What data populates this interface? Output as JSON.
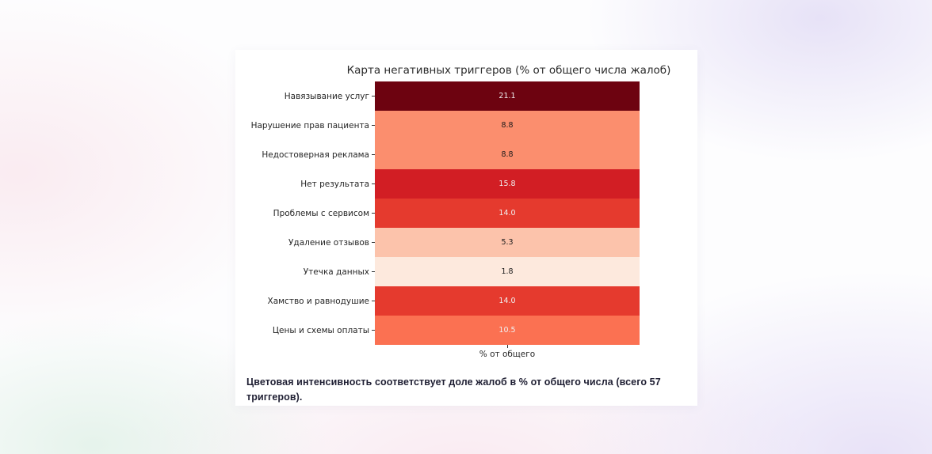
{
  "chart_data": {
    "type": "heatmap",
    "title": "Карта негативных триггеров (% от общего числа жалоб)",
    "xlabel": "% от общего",
    "categories": [
      "Навязывание услуг",
      "Нарушение прав пациента",
      "Недостоверная реклама",
      "Нет результата",
      "Проблемы с сервисом",
      "Удаление отзывов",
      "Утечка данных",
      "Хамство и равнодушие",
      "Цены и схемы оплаты"
    ],
    "values": [
      21.1,
      8.8,
      8.8,
      15.8,
      14.0,
      5.3,
      1.8,
      14.0,
      10.5
    ],
    "value_labels": [
      "21.1",
      "8.8",
      "8.8",
      "15.8",
      "14.0",
      "5.3",
      "1.8",
      "14.0",
      "10.5"
    ],
    "cell_colors": [
      "#6d0310",
      "#fb8e6e",
      "#fb8e6e",
      "#d21e24",
      "#e53a2e",
      "#fcc3ab",
      "#fde9dd",
      "#e53a2e",
      "#fb7152"
    ],
    "text_colors": [
      "#f0f0f0",
      "#1a1a1a",
      "#1a1a1a",
      "#f0f0f0",
      "#f0f0f0",
      "#1a1a1a",
      "#1a1a1a",
      "#f0f0f0",
      "#f0f0f0"
    ],
    "colormap": "Reds",
    "value_range": [
      0,
      21.1
    ],
    "legend": "none",
    "grid": false
  },
  "caption": {
    "text": "Цветовая интенсивность соответствует доле жалоб в % от общего числа (всего 57 триггеров)."
  }
}
